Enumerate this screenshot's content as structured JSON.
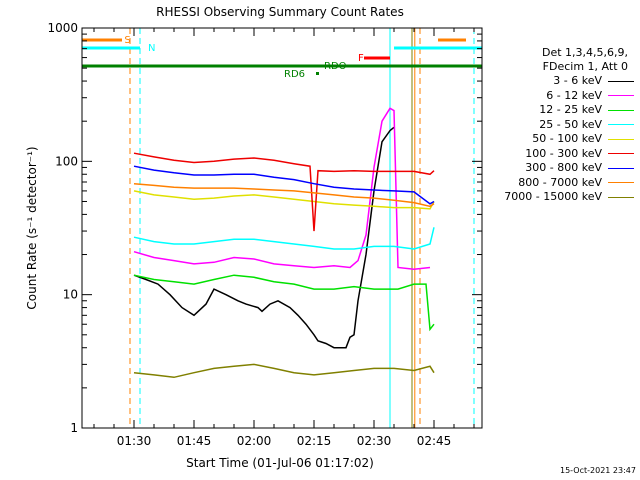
{
  "chart_data": {
    "type": "line",
    "title": "RHESSI Observing Summary Count Rates",
    "xlabel": "Start Time (01-Jul-06 01:17:02)",
    "ylabel": "Count Rate (s⁻¹ detector⁻¹)",
    "yscale": "log",
    "ylim": [
      1,
      1000
    ],
    "xlim_min": [
      17,
      117
    ],
    "xticks": [
      {
        "label": "01:30",
        "min": 30
      },
      {
        "label": "01:45",
        "min": 45
      },
      {
        "label": "02:00",
        "min": 60
      },
      {
        "label": "02:15",
        "min": 75
      },
      {
        "label": "02:30",
        "min": 90
      },
      {
        "label": "02:45",
        "min": 105
      }
    ],
    "yticks": [
      {
        "label": "1",
        "value": 1
      },
      {
        "label": "10",
        "value": 10
      },
      {
        "label": "100",
        "value": 100
      },
      {
        "label": "1000",
        "value": 1000
      }
    ],
    "legend_header": [
      "Det 1,3,4,5,6,9,",
      "FDecim 1, Att 0"
    ],
    "legend_placement": "right",
    "series": [
      {
        "name": "3 - 6 keV",
        "color": "#000000",
        "points": [
          [
            30,
            14
          ],
          [
            33,
            13
          ],
          [
            36,
            12
          ],
          [
            39,
            10
          ],
          [
            42,
            8
          ],
          [
            45,
            7
          ],
          [
            48,
            8.5
          ],
          [
            50,
            11
          ],
          [
            53,
            10
          ],
          [
            56,
            9
          ],
          [
            58,
            8.5
          ],
          [
            61,
            8
          ],
          [
            62,
            7.5
          ],
          [
            64,
            8.5
          ],
          [
            66,
            9
          ],
          [
            69,
            8
          ],
          [
            71,
            7
          ],
          [
            73,
            6
          ],
          [
            75,
            5
          ],
          [
            76,
            4.5
          ],
          [
            78,
            4.3
          ],
          [
            80,
            4
          ],
          [
            83,
            4
          ],
          [
            84,
            4.8
          ],
          [
            85,
            5
          ],
          [
            86,
            9
          ],
          [
            88,
            20
          ],
          [
            90,
            60
          ],
          [
            92,
            140
          ],
          [
            94,
            170
          ],
          [
            95,
            180
          ]
        ]
      },
      {
        "name": "6 - 12 keV",
        "color": "#ff00ff",
        "points": [
          [
            30,
            21
          ],
          [
            35,
            19
          ],
          [
            40,
            18
          ],
          [
            45,
            17
          ],
          [
            50,
            17.5
          ],
          [
            55,
            19
          ],
          [
            60,
            18.5
          ],
          [
            65,
            17
          ],
          [
            70,
            16.5
          ],
          [
            75,
            16
          ],
          [
            80,
            16.5
          ],
          [
            84,
            16
          ],
          [
            86,
            18
          ],
          [
            88,
            28
          ],
          [
            90,
            90
          ],
          [
            92,
            200
          ],
          [
            94,
            250
          ],
          [
            95,
            240
          ],
          [
            96,
            16
          ],
          [
            100,
            15.5
          ],
          [
            104,
            16
          ]
        ]
      },
      {
        "name": "12 - 25 keV",
        "color": "#00e000",
        "points": [
          [
            30,
            14
          ],
          [
            35,
            13
          ],
          [
            40,
            12.5
          ],
          [
            45,
            12
          ],
          [
            50,
            13
          ],
          [
            55,
            14
          ],
          [
            60,
            13.5
          ],
          [
            65,
            12.5
          ],
          [
            70,
            12
          ],
          [
            75,
            11
          ],
          [
            80,
            11
          ],
          [
            85,
            11.5
          ],
          [
            90,
            11
          ],
          [
            96,
            11
          ],
          [
            100,
            12
          ],
          [
            103,
            12
          ],
          [
            104,
            5.5
          ],
          [
            105,
            6
          ]
        ]
      },
      {
        "name": "25 - 50 keV",
        "color": "#00ffff",
        "points": [
          [
            30,
            27
          ],
          [
            35,
            25
          ],
          [
            40,
            24
          ],
          [
            45,
            24
          ],
          [
            50,
            25
          ],
          [
            55,
            26
          ],
          [
            60,
            26
          ],
          [
            65,
            25
          ],
          [
            70,
            24
          ],
          [
            75,
            23
          ],
          [
            80,
            22
          ],
          [
            85,
            22
          ],
          [
            90,
            23
          ],
          [
            95,
            23
          ],
          [
            100,
            22
          ],
          [
            104,
            24
          ],
          [
            105,
            32
          ]
        ]
      },
      {
        "name": "50 - 100 keV",
        "color": "#e0e000",
        "points": [
          [
            30,
            60
          ],
          [
            35,
            56
          ],
          [
            40,
            54
          ],
          [
            45,
            52
          ],
          [
            50,
            53
          ],
          [
            55,
            55
          ],
          [
            60,
            56
          ],
          [
            65,
            54
          ],
          [
            70,
            52
          ],
          [
            75,
            50
          ],
          [
            80,
            48
          ],
          [
            85,
            47
          ],
          [
            90,
            46
          ],
          [
            95,
            45
          ],
          [
            100,
            45
          ],
          [
            104,
            44
          ],
          [
            105,
            50
          ]
        ]
      },
      {
        "name": "100 - 300 keV",
        "color": "#ee0000",
        "points": [
          [
            30,
            115
          ],
          [
            35,
            108
          ],
          [
            40,
            102
          ],
          [
            45,
            98
          ],
          [
            50,
            100
          ],
          [
            55,
            104
          ],
          [
            60,
            106
          ],
          [
            65,
            102
          ],
          [
            70,
            96
          ],
          [
            74,
            92
          ],
          [
            75,
            30
          ],
          [
            76,
            85
          ],
          [
            80,
            84
          ],
          [
            85,
            85
          ],
          [
            90,
            84
          ],
          [
            95,
            84
          ],
          [
            100,
            84
          ],
          [
            104,
            80
          ],
          [
            105,
            85
          ]
        ]
      },
      {
        "name": "300 - 800 keV",
        "color": "#0000ff",
        "points": [
          [
            30,
            92
          ],
          [
            35,
            86
          ],
          [
            40,
            82
          ],
          [
            45,
            79
          ],
          [
            50,
            79
          ],
          [
            55,
            80
          ],
          [
            60,
            80
          ],
          [
            65,
            76
          ],
          [
            70,
            73
          ],
          [
            75,
            68
          ],
          [
            80,
            64
          ],
          [
            85,
            62
          ],
          [
            90,
            61
          ],
          [
            95,
            60
          ],
          [
            100,
            59
          ],
          [
            104,
            48
          ],
          [
            105,
            50
          ]
        ]
      },
      {
        "name": "800 - 7000 keV",
        "color": "#ff8000",
        "points": [
          [
            30,
            68
          ],
          [
            35,
            66
          ],
          [
            40,
            64
          ],
          [
            45,
            63
          ],
          [
            50,
            63
          ],
          [
            55,
            63
          ],
          [
            60,
            62
          ],
          [
            65,
            61
          ],
          [
            70,
            60
          ],
          [
            75,
            58
          ],
          [
            80,
            56
          ],
          [
            85,
            54
          ],
          [
            90,
            53
          ],
          [
            95,
            51
          ],
          [
            100,
            49
          ],
          [
            104,
            46
          ],
          [
            105,
            48
          ]
        ]
      },
      {
        "name": "7000 - 15000 keV",
        "color": "#808000",
        "points": [
          [
            30,
            2.6
          ],
          [
            35,
            2.5
          ],
          [
            40,
            2.4
          ],
          [
            45,
            2.6
          ],
          [
            50,
            2.8
          ],
          [
            55,
            2.9
          ],
          [
            60,
            3
          ],
          [
            65,
            2.8
          ],
          [
            70,
            2.6
          ],
          [
            75,
            2.5
          ],
          [
            80,
            2.6
          ],
          [
            85,
            2.7
          ],
          [
            90,
            2.8
          ],
          [
            95,
            2.8
          ],
          [
            100,
            2.7
          ],
          [
            104,
            2.9
          ],
          [
            105,
            2.6
          ]
        ]
      }
    ],
    "flags": [
      {
        "label": "S",
        "color": "#ff8000"
      },
      {
        "label": "N",
        "color": "#00ffff"
      },
      {
        "label": "F",
        "color": "#ff0000"
      },
      {
        "label": "RDO",
        "color": "#008000"
      },
      {
        "label": "RD6",
        "color": "#008000"
      }
    ],
    "timestamp": "15-Oct-2021 23:47"
  }
}
